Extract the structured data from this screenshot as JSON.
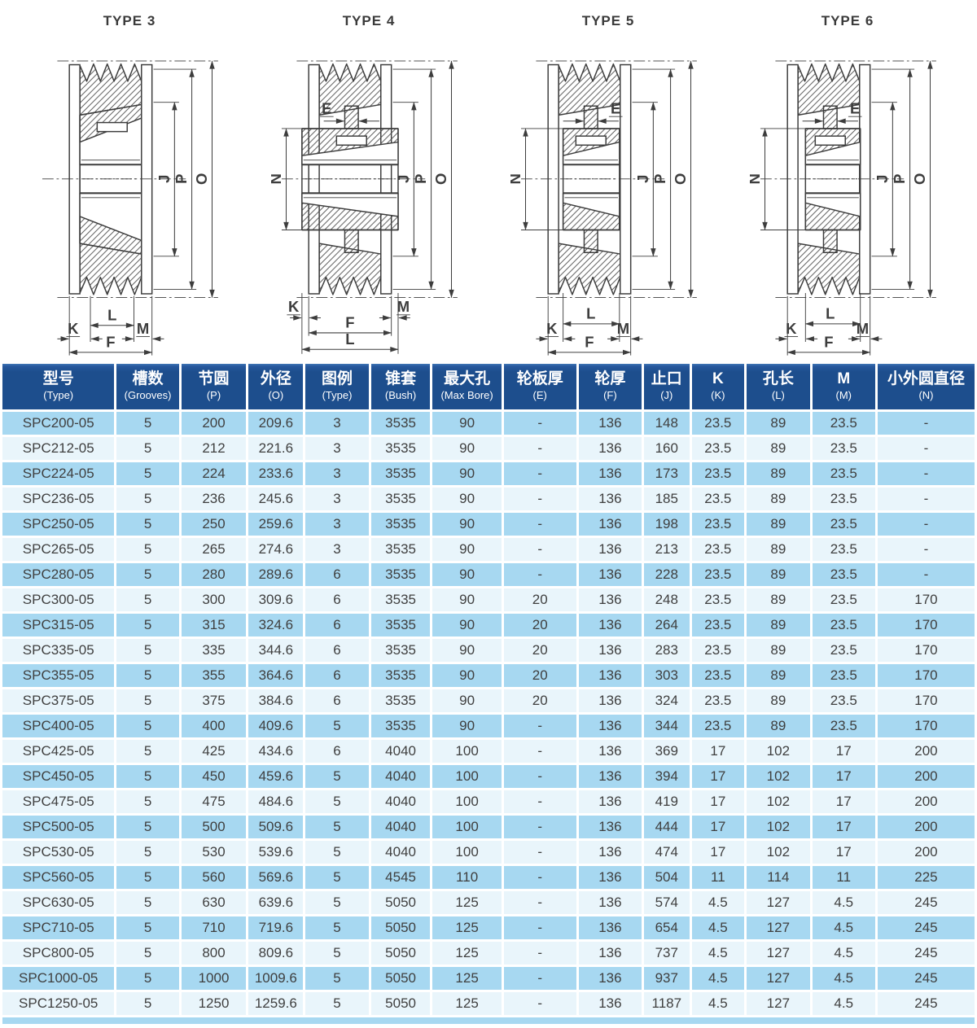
{
  "colors": {
    "header_bg": "#1d4e8d",
    "row_dark": "#a7d8f1",
    "row_light": "#e9f5fb",
    "drawing_ink": "#3d3d3d"
  },
  "diagrams": [
    {
      "title": "TYPE 3",
      "variant": 3,
      "dims": {
        "J": "J",
        "P": "P",
        "O": "O",
        "K": "K",
        "L": "L",
        "M": "M",
        "F": "F"
      }
    },
    {
      "title": "TYPE 4",
      "variant": 4,
      "dims": {
        "E": "E",
        "N": "N",
        "J": "J",
        "P": "P",
        "O": "O",
        "K": "K",
        "L": "L",
        "M": "M",
        "F": "F"
      }
    },
    {
      "title": "TYPE 5",
      "variant": 5,
      "dims": {
        "E": "E",
        "N": "N",
        "J": "J",
        "P": "P",
        "O": "O",
        "K": "K",
        "L": "L",
        "M": "M",
        "F": "F"
      }
    },
    {
      "title": "TYPE 6",
      "variant": 6,
      "dims": {
        "E": "E",
        "N": "N",
        "J": "J",
        "P": "P",
        "O": "O",
        "K": "K",
        "L": "L",
        "M": "M",
        "F": "F"
      }
    }
  ],
  "table": {
    "headers": [
      {
        "zh": "型号",
        "en": "(Type)"
      },
      {
        "zh": "槽数",
        "en": "(Grooves)"
      },
      {
        "zh": "节圆",
        "en": "(P)"
      },
      {
        "zh": "外径",
        "en": "(O)"
      },
      {
        "zh": "图例",
        "en": "(Type)"
      },
      {
        "zh": "锥套",
        "en": "(Bush)"
      },
      {
        "zh": "最大孔",
        "en": "(Max Bore)"
      },
      {
        "zh": "轮板厚",
        "en": "(E)"
      },
      {
        "zh": "轮厚",
        "en": "(F)"
      },
      {
        "zh": "止口",
        "en": "(J)"
      },
      {
        "zh": "K",
        "en": "(K)"
      },
      {
        "zh": "孔长",
        "en": "(L)"
      },
      {
        "zh": "M",
        "en": "(M)"
      },
      {
        "zh": "小外圆直径",
        "en": "(N)"
      }
    ],
    "rows": [
      [
        "SPC200-05",
        "5",
        "200",
        "209.6",
        "3",
        "3535",
        "90",
        "-",
        "136",
        "148",
        "23.5",
        "89",
        "23.5",
        "-"
      ],
      [
        "SPC212-05",
        "5",
        "212",
        "221.6",
        "3",
        "3535",
        "90",
        "-",
        "136",
        "160",
        "23.5",
        "89",
        "23.5",
        "-"
      ],
      [
        "SPC224-05",
        "5",
        "224",
        "233.6",
        "3",
        "3535",
        "90",
        "-",
        "136",
        "173",
        "23.5",
        "89",
        "23.5",
        "-"
      ],
      [
        "SPC236-05",
        "5",
        "236",
        "245.6",
        "3",
        "3535",
        "90",
        "-",
        "136",
        "185",
        "23.5",
        "89",
        "23.5",
        "-"
      ],
      [
        "SPC250-05",
        "5",
        "250",
        "259.6",
        "3",
        "3535",
        "90",
        "-",
        "136",
        "198",
        "23.5",
        "89",
        "23.5",
        "-"
      ],
      [
        "SPC265-05",
        "5",
        "265",
        "274.6",
        "3",
        "3535",
        "90",
        "-",
        "136",
        "213",
        "23.5",
        "89",
        "23.5",
        "-"
      ],
      [
        "SPC280-05",
        "5",
        "280",
        "289.6",
        "6",
        "3535",
        "90",
        "-",
        "136",
        "228",
        "23.5",
        "89",
        "23.5",
        "-"
      ],
      [
        "SPC300-05",
        "5",
        "300",
        "309.6",
        "6",
        "3535",
        "90",
        "20",
        "136",
        "248",
        "23.5",
        "89",
        "23.5",
        "170"
      ],
      [
        "SPC315-05",
        "5",
        "315",
        "324.6",
        "6",
        "3535",
        "90",
        "20",
        "136",
        "264",
        "23.5",
        "89",
        "23.5",
        "170"
      ],
      [
        "SPC335-05",
        "5",
        "335",
        "344.6",
        "6",
        "3535",
        "90",
        "20",
        "136",
        "283",
        "23.5",
        "89",
        "23.5",
        "170"
      ],
      [
        "SPC355-05",
        "5",
        "355",
        "364.6",
        "6",
        "3535",
        "90",
        "20",
        "136",
        "303",
        "23.5",
        "89",
        "23.5",
        "170"
      ],
      [
        "SPC375-05",
        "5",
        "375",
        "384.6",
        "6",
        "3535",
        "90",
        "20",
        "136",
        "324",
        "23.5",
        "89",
        "23.5",
        "170"
      ],
      [
        "SPC400-05",
        "5",
        "400",
        "409.6",
        "5",
        "3535",
        "90",
        "-",
        "136",
        "344",
        "23.5",
        "89",
        "23.5",
        "170"
      ],
      [
        "SPC425-05",
        "5",
        "425",
        "434.6",
        "6",
        "4040",
        "100",
        "-",
        "136",
        "369",
        "17",
        "102",
        "17",
        "200"
      ],
      [
        "SPC450-05",
        "5",
        "450",
        "459.6",
        "5",
        "4040",
        "100",
        "-",
        "136",
        "394",
        "17",
        "102",
        "17",
        "200"
      ],
      [
        "SPC475-05",
        "5",
        "475",
        "484.6",
        "5",
        "4040",
        "100",
        "-",
        "136",
        "419",
        "17",
        "102",
        "17",
        "200"
      ],
      [
        "SPC500-05",
        "5",
        "500",
        "509.6",
        "5",
        "4040",
        "100",
        "-",
        "136",
        "444",
        "17",
        "102",
        "17",
        "200"
      ],
      [
        "SPC530-05",
        "5",
        "530",
        "539.6",
        "5",
        "4040",
        "100",
        "-",
        "136",
        "474",
        "17",
        "102",
        "17",
        "200"
      ],
      [
        "SPC560-05",
        "5",
        "560",
        "569.6",
        "5",
        "4545",
        "110",
        "-",
        "136",
        "504",
        "11",
        "114",
        "11",
        "225"
      ],
      [
        "SPC630-05",
        "5",
        "630",
        "639.6",
        "5",
        "5050",
        "125",
        "-",
        "136",
        "574",
        "4.5",
        "127",
        "4.5",
        "245"
      ],
      [
        "SPC710-05",
        "5",
        "710",
        "719.6",
        "5",
        "5050",
        "125",
        "-",
        "136",
        "654",
        "4.5",
        "127",
        "4.5",
        "245"
      ],
      [
        "SPC800-05",
        "5",
        "800",
        "809.6",
        "5",
        "5050",
        "125",
        "-",
        "136",
        "737",
        "4.5",
        "127",
        "4.5",
        "245"
      ],
      [
        "SPC1000-05",
        "5",
        "1000",
        "1009.6",
        "5",
        "5050",
        "125",
        "-",
        "136",
        "937",
        "4.5",
        "127",
        "4.5",
        "245"
      ],
      [
        "SPC1250-05",
        "5",
        "1250",
        "1259.6",
        "5",
        "5050",
        "125",
        "-",
        "136",
        "1187",
        "4.5",
        "127",
        "4.5",
        "245"
      ]
    ]
  }
}
